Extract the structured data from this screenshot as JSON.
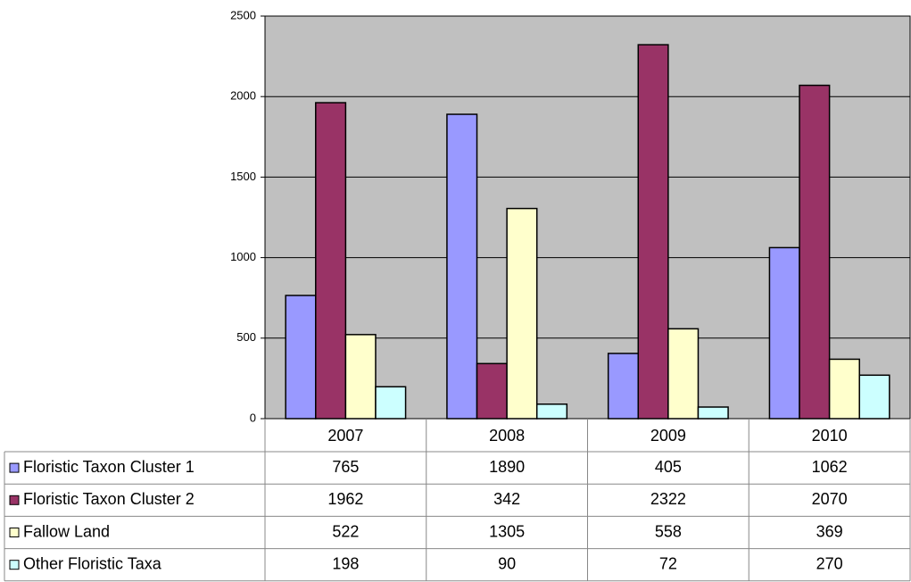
{
  "chart_data": {
    "type": "bar",
    "categories": [
      "2007",
      "2008",
      "2009",
      "2010"
    ],
    "series": [
      {
        "name": "Floristic Taxon Cluster 1",
        "color": "#9999ff",
        "values": [
          765,
          1890,
          405,
          1062
        ]
      },
      {
        "name": "Floristic Taxon Cluster 2",
        "color": "#993366",
        "values": [
          1962,
          342,
          2322,
          2070
        ]
      },
      {
        "name": "Fallow Land",
        "color": "#ffffcc",
        "values": [
          522,
          1305,
          558,
          369
        ]
      },
      {
        "name": "Other Floristic Taxa",
        "color": "#ccffff",
        "values": [
          198,
          90,
          72,
          270
        ]
      }
    ],
    "ylim": [
      0,
      2500
    ],
    "yticks": [
      0,
      500,
      1000,
      1500,
      2000,
      2500
    ],
    "grid": true,
    "plot_background": "#c0c0c0"
  }
}
